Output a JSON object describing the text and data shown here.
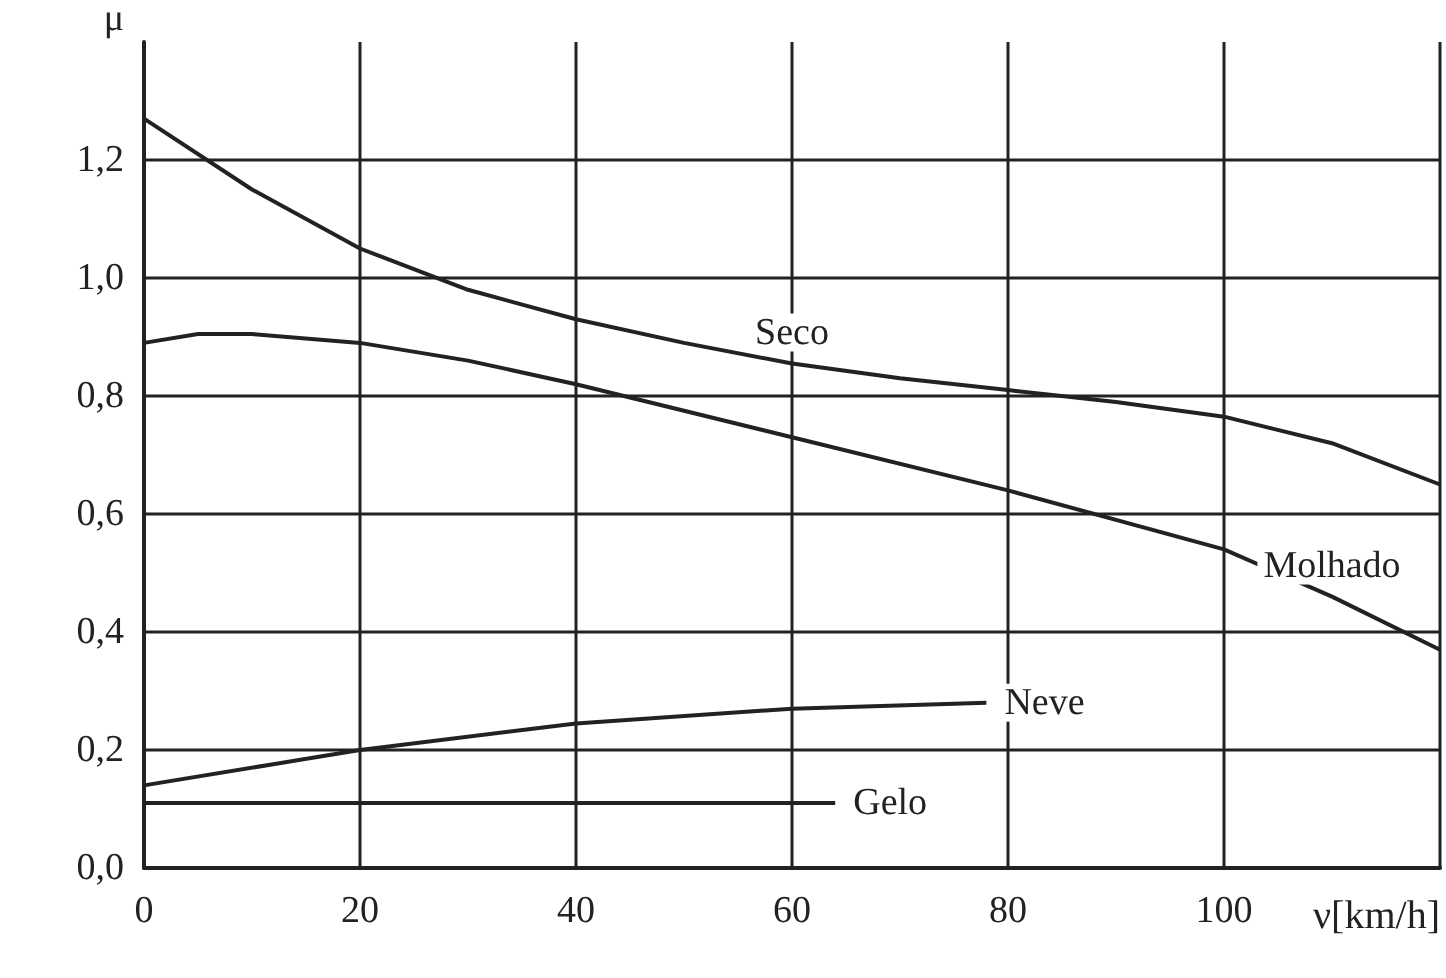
{
  "chart_data": {
    "type": "line",
    "xlabel": "ν[km/h]",
    "ylabel": "μ",
    "xlim": [
      0,
      120
    ],
    "ylim": [
      0,
      1.4
    ],
    "xticks": [
      0,
      20,
      40,
      60,
      80,
      100,
      {
        "value": 120,
        "label": null
      }
    ],
    "yticks": [
      {
        "value": 0,
        "label": "0,0"
      },
      {
        "value": 0.2,
        "label": "0,2"
      },
      {
        "value": 0.4,
        "label": "0,4"
      },
      {
        "value": 0.6,
        "label": "0,6"
      },
      {
        "value": 0.8,
        "label": "0,8"
      },
      {
        "value": 1.0,
        "label": "1,0"
      },
      {
        "value": 1.2,
        "label": "1,2"
      }
    ],
    "grid": true,
    "legend": false,
    "marker": "none",
    "line_style": "solid",
    "series": [
      {
        "name": "Seco",
        "color": "#222222",
        "x": [
          0,
          10,
          20,
          30,
          40,
          50,
          60,
          70,
          80,
          90,
          100,
          110,
          120
        ],
        "values": [
          1.27,
          1.15,
          1.05,
          0.98,
          0.93,
          0.89,
          0.855,
          0.83,
          0.81,
          0.79,
          0.765,
          0.72,
          0.65
        ]
      },
      {
        "name": "Molhado",
        "color": "#222222",
        "x": [
          0,
          5,
          10,
          20,
          30,
          40,
          60,
          80,
          100,
          110,
          120
        ],
        "values": [
          0.89,
          0.905,
          0.905,
          0.89,
          0.86,
          0.82,
          0.73,
          0.64,
          0.54,
          0.46,
          0.37
        ]
      },
      {
        "name": "Neve",
        "color": "#222222",
        "x": [
          0,
          20,
          40,
          60,
          78
        ],
        "values": [
          0.14,
          0.2,
          0.245,
          0.27,
          0.28
        ]
      },
      {
        "name": "Gelo",
        "color": "#222222",
        "x": [
          0,
          64
        ],
        "values": [
          0.11,
          0.11
        ]
      }
    ]
  }
}
